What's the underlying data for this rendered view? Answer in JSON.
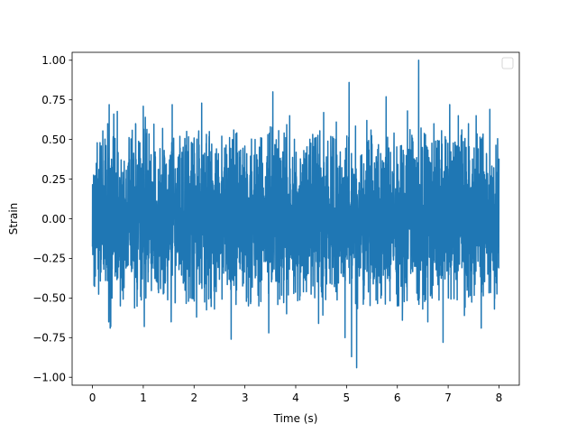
{
  "chart_data": {
    "type": "line",
    "title": "",
    "xlabel": "Time (s)",
    "ylabel": "Strain",
    "xlim": [
      -0.4,
      8.4
    ],
    "ylim": [
      -1.05,
      1.05
    ],
    "x_ticks": [
      0,
      1,
      2,
      3,
      4,
      5,
      6,
      7,
      8
    ],
    "x_tick_labels": [
      "0",
      "1",
      "2",
      "3",
      "4",
      "5",
      "6",
      "7",
      "8"
    ],
    "y_ticks": [
      -1.0,
      -0.75,
      -0.5,
      -0.25,
      0.0,
      0.25,
      0.5,
      0.75,
      1.0
    ],
    "y_tick_labels": [
      "−1.00",
      "−0.75",
      "−0.50",
      "−0.25",
      "0.00",
      "0.25",
      "0.50",
      "0.75",
      "1.00"
    ],
    "grid": false,
    "legend": {
      "placement": "top-right",
      "entries": []
    },
    "series": [
      {
        "color": "#1f77b4",
        "x_start": 0,
        "x_end": 8,
        "typical_amplitude": 0.3,
        "peaks": [
          {
            "x": 0.15,
            "y": 0.48
          },
          {
            "x": 0.3,
            "y": 0.6
          },
          {
            "x": 0.32,
            "y": -0.65
          },
          {
            "x": 0.36,
            "y": -0.68
          },
          {
            "x": 0.42,
            "y": 0.58
          },
          {
            "x": 0.33,
            "y": 0.72
          },
          {
            "x": 0.35,
            "y": -0.69
          },
          {
            "x": 0.42,
            "y": 0.66
          },
          {
            "x": 0.55,
            "y": -0.55
          },
          {
            "x": 0.85,
            "y": 0.6
          },
          {
            "x": 0.95,
            "y": -0.49
          },
          {
            "x": 1.0,
            "y": 0.71
          },
          {
            "x": 1.02,
            "y": -0.68
          },
          {
            "x": 1.38,
            "y": 0.57
          },
          {
            "x": 1.55,
            "y": -0.65
          },
          {
            "x": 1.57,
            "y": 0.72
          },
          {
            "x": 1.72,
            "y": 0.52
          },
          {
            "x": 2.05,
            "y": -0.62
          },
          {
            "x": 2.15,
            "y": 0.73
          },
          {
            "x": 2.3,
            "y": 0.55
          },
          {
            "x": 2.4,
            "y": -0.57
          },
          {
            "x": 2.73,
            "y": -0.76
          },
          {
            "x": 2.78,
            "y": 0.56
          },
          {
            "x": 3.07,
            "y": -0.55
          },
          {
            "x": 3.2,
            "y": 0.5
          },
          {
            "x": 3.47,
            "y": -0.72
          },
          {
            "x": 3.5,
            "y": 0.58
          },
          {
            "x": 3.55,
            "y": 0.8
          },
          {
            "x": 3.82,
            "y": -0.6
          },
          {
            "x": 3.88,
            "y": 0.65
          },
          {
            "x": 4.45,
            "y": -0.66
          },
          {
            "x": 4.55,
            "y": 0.67
          },
          {
            "x": 4.8,
            "y": 0.61
          },
          {
            "x": 4.97,
            "y": -0.75
          },
          {
            "x": 5.05,
            "y": 0.86
          },
          {
            "x": 5.1,
            "y": -0.87
          },
          {
            "x": 5.2,
            "y": -0.94
          },
          {
            "x": 5.4,
            "y": 0.62
          },
          {
            "x": 5.78,
            "y": 0.77
          },
          {
            "x": 6.0,
            "y": -0.55
          },
          {
            "x": 6.1,
            "y": -0.64
          },
          {
            "x": 6.2,
            "y": 0.68
          },
          {
            "x": 6.42,
            "y": 1.0
          },
          {
            "x": 6.5,
            "y": -0.57
          },
          {
            "x": 6.6,
            "y": -0.65
          },
          {
            "x": 6.72,
            "y": 0.6
          },
          {
            "x": 6.9,
            "y": -0.78
          },
          {
            "x": 7.03,
            "y": 0.72
          },
          {
            "x": 7.2,
            "y": 0.65
          },
          {
            "x": 7.32,
            "y": -0.61
          },
          {
            "x": 7.4,
            "y": 0.6
          },
          {
            "x": 7.55,
            "y": 0.65
          },
          {
            "x": 7.65,
            "y": -0.69
          },
          {
            "x": 7.82,
            "y": 0.69
          },
          {
            "x": 7.91,
            "y": -0.57
          }
        ]
      }
    ]
  }
}
